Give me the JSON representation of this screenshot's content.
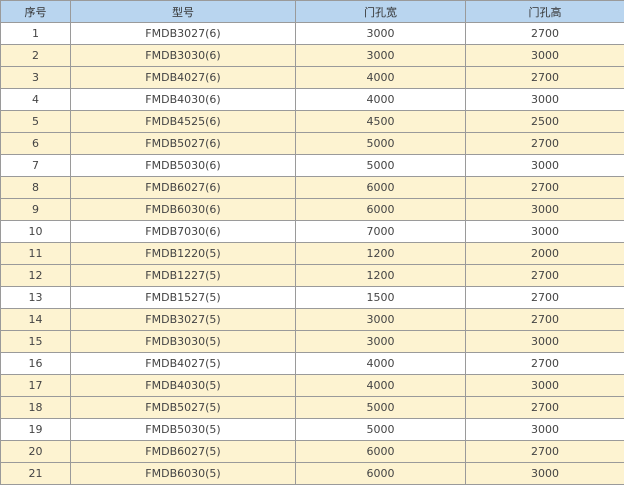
{
  "colors": {
    "header": "#b9d5ef",
    "row_alt": "#fdf3d1",
    "row_plain": "#ffffff"
  },
  "headers": [
    "序号",
    "型号",
    "门孔宽",
    "门孔高"
  ],
  "rows": [
    [
      "1",
      "FMDB3027(6)",
      "3000",
      "2700"
    ],
    [
      "2",
      "FMDB3030(6)",
      "3000",
      "3000"
    ],
    [
      "3",
      "FMDB4027(6)",
      "4000",
      "2700"
    ],
    [
      "4",
      "FMDB4030(6)",
      "4000",
      "3000"
    ],
    [
      "5",
      "FMDB4525(6)",
      "4500",
      "2500"
    ],
    [
      "6",
      "FMDB5027(6)",
      "5000",
      "2700"
    ],
    [
      "7",
      "FMDB5030(6)",
      "5000",
      "3000"
    ],
    [
      "8",
      "FMDB6027(6)",
      "6000",
      "2700"
    ],
    [
      "9",
      "FMDB6030(6)",
      "6000",
      "3000"
    ],
    [
      "10",
      "FMDB7030(6)",
      "7000",
      "3000"
    ],
    [
      "11",
      "FMDB1220(5)",
      "1200",
      "2000"
    ],
    [
      "12",
      "FMDB1227(5)",
      "1200",
      "2700"
    ],
    [
      "13",
      "FMDB1527(5)",
      "1500",
      "2700"
    ],
    [
      "14",
      "FMDB3027(5)",
      "3000",
      "2700"
    ],
    [
      "15",
      "FMDB3030(5)",
      "3000",
      "3000"
    ],
    [
      "16",
      "FMDB4027(5)",
      "4000",
      "2700"
    ],
    [
      "17",
      "FMDB4030(5)",
      "4000",
      "3000"
    ],
    [
      "18",
      "FMDB5027(5)",
      "5000",
      "2700"
    ],
    [
      "19",
      "FMDB5030(5)",
      "5000",
      "3000"
    ],
    [
      "20",
      "FMDB6027(5)",
      "6000",
      "2700"
    ],
    [
      "21",
      "FMDB6030(5)",
      "6000",
      "3000"
    ]
  ]
}
